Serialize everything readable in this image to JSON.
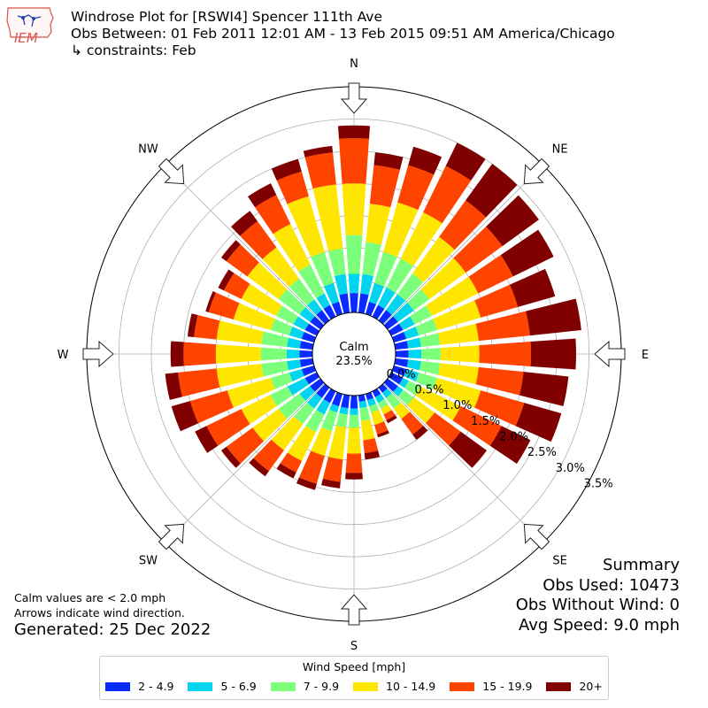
{
  "header": {
    "line1": "Windrose Plot for [RSWI4] Spencer 111th Ave",
    "line2": "Obs Between: 01 Feb 2011 12:01 AM - 13 Feb 2015 09:51 AM America/Chicago",
    "line3": "↳ constraints: Feb",
    "logo_text": "IEM"
  },
  "notes": {
    "calm_note": "Calm values are < 2.0 mph",
    "arrow_note": "Arrows indicate wind direction.",
    "generated": "Generated: 25 Dec 2022"
  },
  "summary": {
    "title": "Summary",
    "obs_used": "Obs Used: 10473",
    "obs_without_wind": "Obs Without Wind: 0",
    "avg_speed": "Avg Speed: 9.0 mph"
  },
  "legend": {
    "title": "Wind Speed [mph]",
    "items": [
      {
        "label": "2 - 4.9",
        "color": "#0a2bff"
      },
      {
        "label": "5 - 6.9",
        "color": "#00d4f0"
      },
      {
        "label": "7 - 9.9",
        "color": "#7cff7a"
      },
      {
        "label": "10 - 14.9",
        "color": "#ffe600"
      },
      {
        "label": "15 - 19.9",
        "color": "#ff4400"
      },
      {
        "label": "20+",
        "color": "#800000"
      }
    ]
  },
  "chart_data": {
    "type": "windrose",
    "title": "Windrose Plot for [RSWI4] Spencer 111th Ave",
    "calm": {
      "label": "Calm",
      "value": "23.5%"
    },
    "radial_ticks": [
      "0.0%",
      "0.5%",
      "1.0%",
      "1.5%",
      "2.0%",
      "2.5%",
      "3.0%",
      "3.5%"
    ],
    "radial_values": [
      0.0,
      0.5,
      1.0,
      1.5,
      2.0,
      2.5,
      3.0,
      3.5
    ],
    "rmax": 3.5,
    "direction_labels": [
      "N",
      "NE",
      "E",
      "SE",
      "S",
      "SW",
      "W",
      "NW"
    ],
    "speed_bins": [
      "2 - 4.9",
      "5 - 6.9",
      "7 - 9.9",
      "10 - 14.9",
      "15 - 19.9",
      "20+"
    ],
    "colors": [
      "#0a2bff",
      "#00d4f0",
      "#7cff7a",
      "#ffe600",
      "#ff4400",
      "#800000"
    ],
    "sector_width_deg": 10,
    "sectors_cumulative_percent": [
      [
        0.3,
        0.6,
        1.2,
        2.0,
        2.7,
        2.9
      ],
      [
        0.3,
        0.6,
        1.1,
        1.7,
        2.3,
        2.5
      ],
      [
        0.2,
        0.5,
        1.0,
        1.8,
        2.4,
        2.7
      ],
      [
        0.2,
        0.5,
        1.0,
        1.8,
        2.6,
        3.0
      ],
      [
        0.2,
        0.5,
        0.9,
        1.6,
        2.3,
        3.0
      ],
      [
        0.2,
        0.5,
        0.8,
        1.5,
        2.2,
        2.9
      ],
      [
        0.2,
        0.4,
        0.7,
        1.5,
        2.1,
        2.8
      ],
      [
        0.2,
        0.4,
        0.7,
        1.4,
        2.0,
        2.6
      ],
      [
        0.2,
        0.4,
        0.7,
        1.3,
        2.1,
        2.9
      ],
      [
        0.2,
        0.4,
        0.7,
        1.3,
        2.1,
        2.8
      ],
      [
        0.2,
        0.4,
        0.7,
        1.3,
        2.0,
        2.7
      ],
      [
        0.2,
        0.4,
        0.7,
        1.4,
        2.1,
        2.7
      ],
      [
        0.2,
        0.3,
        0.5,
        1.2,
        1.9,
        2.4
      ],
      [
        0.2,
        0.3,
        0.5,
        0.9,
        1.4,
        1.9
      ],
      [
        0.1,
        0.2,
        0.4,
        0.6,
        0.9,
        1.0
      ],
      [
        0.1,
        0.2,
        0.3,
        0.4,
        0.5,
        0.55
      ],
      [
        0.1,
        0.2,
        0.3,
        0.5,
        0.65,
        0.7
      ],
      [
        0.1,
        0.2,
        0.4,
        0.7,
        0.9,
        1.0
      ],
      [
        0.2,
        0.3,
        0.5,
        0.9,
        1.2,
        1.3
      ],
      [
        0.2,
        0.3,
        0.5,
        1.0,
        1.35,
        1.45
      ],
      [
        0.2,
        0.3,
        0.6,
        1.0,
        1.45,
        1.55
      ],
      [
        0.2,
        0.4,
        0.7,
        1.2,
        1.4,
        1.5
      ],
      [
        0.2,
        0.4,
        0.7,
        1.2,
        1.6,
        1.7
      ],
      [
        0.2,
        0.4,
        0.8,
        1.3,
        1.8,
        1.9
      ],
      [
        0.2,
        0.5,
        0.8,
        1.3,
        1.9,
        2.1
      ],
      [
        0.2,
        0.4,
        0.7,
        1.4,
        2.0,
        2.3
      ],
      [
        0.2,
        0.4,
        0.8,
        1.5,
        2.1,
        2.3
      ],
      [
        0.2,
        0.4,
        0.8,
        1.5,
        2.0,
        2.2
      ],
      [
        0.2,
        0.4,
        0.8,
        1.5,
        1.85,
        1.95
      ],
      [
        0.2,
        0.4,
        0.7,
        1.3,
        1.7,
        1.75
      ],
      [
        0.2,
        0.4,
        0.7,
        1.3,
        1.6,
        1.7
      ],
      [
        0.2,
        0.4,
        0.8,
        1.4,
        1.8,
        1.9
      ],
      [
        0.2,
        0.4,
        0.8,
        1.4,
        1.9,
        2.1
      ],
      [
        0.2,
        0.4,
        0.9,
        1.6,
        2.1,
        2.3
      ],
      [
        0.2,
        0.5,
        1.0,
        1.9,
        2.3,
        2.5
      ],
      [
        0.3,
        0.6,
        1.0,
        2.0,
        2.5,
        2.6
      ]
    ]
  }
}
